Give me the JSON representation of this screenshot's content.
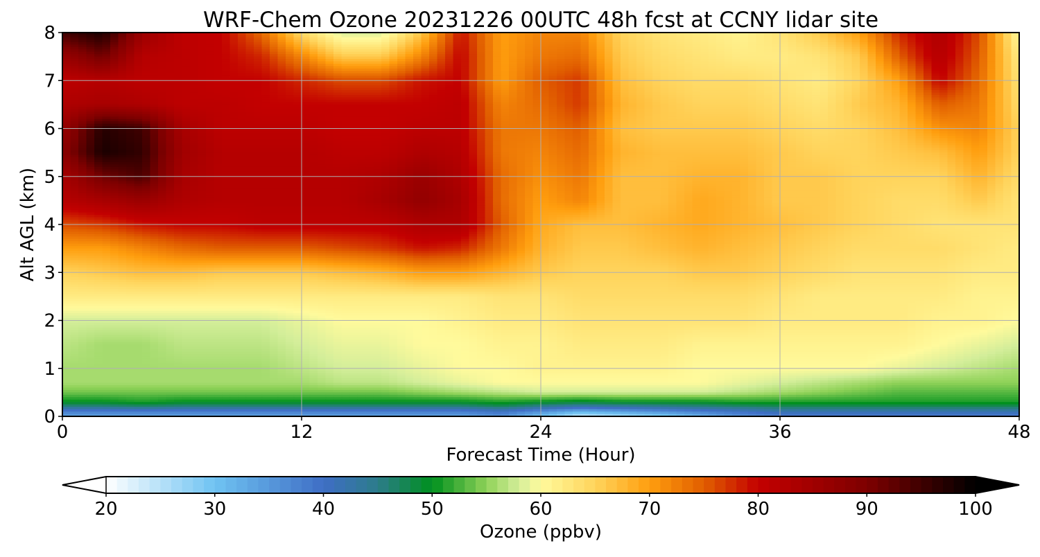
{
  "chart_data": {
    "type": "heatmap",
    "title": "WRF-Chem Ozone  20231226 00UTC 48h fcst at CCNY lidar site",
    "xlabel": "Forecast Time (Hour)",
    "ylabel": "Alt AGL (km)",
    "xlim": [
      0,
      48
    ],
    "ylim": [
      0,
      8
    ],
    "xticks": [
      0,
      12,
      24,
      36,
      48
    ],
    "yticks": [
      0,
      1,
      2,
      3,
      4,
      5,
      6,
      7,
      8
    ],
    "grid": true,
    "colorbar": {
      "label": "Ozone  (ppbv)",
      "orientation": "horizontal",
      "position": "bottom",
      "range": [
        20,
        100
      ],
      "ticks": [
        20,
        30,
        40,
        50,
        60,
        70,
        80,
        90,
        100
      ],
      "extend": "both",
      "color_stops": [
        {
          "value": 20,
          "color": "#ffffff"
        },
        {
          "value": 30,
          "color": "#6fc3f2"
        },
        {
          "value": 40,
          "color": "#3f6ec5"
        },
        {
          "value": 45,
          "color": "#2c7c8a"
        },
        {
          "value": 50,
          "color": "#00901e"
        },
        {
          "value": 55,
          "color": "#8fd258"
        },
        {
          "value": 58,
          "color": "#d4ee9a"
        },
        {
          "value": 60,
          "color": "#fffa9c"
        },
        {
          "value": 65,
          "color": "#ffd45c"
        },
        {
          "value": 70,
          "color": "#ff9e0e"
        },
        {
          "value": 75,
          "color": "#e15e00"
        },
        {
          "value": 80,
          "color": "#c30000"
        },
        {
          "value": 90,
          "color": "#7e0000"
        },
        {
          "value": 100,
          "color": "#000000"
        }
      ]
    },
    "x_hours": [
      0,
      2,
      4,
      6,
      8,
      10,
      12,
      14,
      16,
      18,
      20,
      22,
      24,
      26,
      28,
      30,
      32,
      34,
      36,
      38,
      40,
      42,
      44,
      46,
      48
    ],
    "z_km": [
      0,
      0.1,
      0.2,
      0.3,
      0.5,
      0.7,
      1.0,
      1.5,
      2.0,
      2.5,
      3.0,
      3.5,
      4.0,
      4.5,
      5.0,
      5.5,
      6.0,
      6.5,
      7.0,
      7.5,
      8.0
    ],
    "ozone_ppbv": [
      [
        34,
        34,
        34,
        34,
        34,
        34,
        34,
        34,
        34,
        34,
        34,
        36,
        30,
        24,
        26,
        28,
        32,
        36,
        38,
        38,
        38,
        38,
        38,
        38,
        38
      ],
      [
        38,
        38,
        38,
        38,
        38,
        38,
        38,
        38,
        38,
        38,
        38,
        40,
        36,
        32,
        34,
        36,
        38,
        40,
        42,
        42,
        42,
        42,
        42,
        42,
        42
      ],
      [
        45,
        45,
        46,
        45,
        45,
        45,
        45,
        45,
        45,
        45,
        45,
        47,
        44,
        42,
        43,
        44,
        45,
        46,
        47,
        47,
        47,
        47,
        47,
        47,
        47
      ],
      [
        50,
        50,
        51,
        50,
        50,
        50,
        50,
        50,
        50,
        50,
        50,
        51,
        50,
        49,
        50,
        50,
        50,
        51,
        51,
        51,
        51,
        51,
        51,
        51,
        51
      ],
      [
        54,
        54,
        54,
        54,
        54,
        54,
        54,
        54,
        54,
        55,
        56,
        57,
        58,
        58,
        58,
        58,
        58,
        57,
        56,
        55,
        54,
        53,
        53,
        53,
        53
      ],
      [
        56,
        56,
        56,
        56,
        56,
        56,
        56,
        57,
        57,
        58,
        59,
        60,
        60,
        60,
        60,
        60,
        60,
        59,
        58,
        57,
        56,
        55,
        55,
        55,
        55
      ],
      [
        56,
        56,
        56,
        56,
        56,
        56,
        57,
        58,
        58,
        59,
        60,
        60,
        61,
        61,
        61,
        61,
        60,
        60,
        60,
        60,
        60,
        59,
        58,
        57,
        56
      ],
      [
        57,
        56,
        56,
        57,
        57,
        57,
        58,
        59,
        59,
        60,
        60,
        61,
        61,
        62,
        62,
        62,
        61,
        61,
        61,
        61,
        61,
        61,
        60,
        59,
        58
      ],
      [
        58,
        58,
        58,
        58,
        58,
        58,
        59,
        60,
        60,
        60,
        61,
        62,
        62,
        63,
        63,
        63,
        63,
        63,
        62,
        62,
        62,
        62,
        61,
        61,
        60
      ],
      [
        62,
        62,
        62,
        62,
        62,
        62,
        62,
        62,
        62,
        62,
        62,
        63,
        63,
        64,
        64,
        64,
        64,
        64,
        63,
        62,
        62,
        62,
        62,
        61,
        61
      ],
      [
        65,
        66,
        67,
        67,
        66,
        66,
        66,
        67,
        68,
        70,
        70,
        68,
        66,
        65,
        65,
        65,
        66,
        66,
        65,
        64,
        63,
        63,
        63,
        62,
        62
      ],
      [
        70,
        70,
        72,
        74,
        75,
        75,
        75,
        76,
        77,
        79,
        78,
        73,
        68,
        66,
        66,
        67,
        68,
        67,
        66,
        65,
        64,
        64,
        64,
        63,
        62
      ],
      [
        76,
        77,
        79,
        80,
        80,
        81,
        81,
        81,
        81,
        83,
        83,
        75,
        69,
        67,
        67,
        68,
        69,
        68,
        67,
        66,
        65,
        64,
        63,
        63,
        63
      ],
      [
        82,
        84,
        86,
        83,
        82,
        82,
        82,
        82,
        84,
        87,
        84,
        74,
        70,
        72,
        67,
        67,
        69,
        68,
        66,
        66,
        65,
        64,
        64,
        66,
        63
      ],
      [
        84,
        91,
        94,
        84,
        82,
        82,
        82,
        82,
        83,
        86,
        83,
        74,
        71,
        73,
        67,
        67,
        68,
        68,
        66,
        66,
        65,
        65,
        65,
        68,
        64
      ],
      [
        88,
        98,
        96,
        85,
        82,
        82,
        82,
        81,
        81,
        83,
        82,
        73,
        72,
        74,
        68,
        67,
        67,
        67,
        66,
        65,
        65,
        66,
        67,
        70,
        65
      ],
      [
        86,
        97,
        95,
        84,
        81,
        81,
        81,
        80,
        80,
        81,
        81,
        73,
        73,
        75,
        67,
        66,
        66,
        66,
        65,
        64,
        65,
        67,
        71,
        72,
        65
      ],
      [
        83,
        84,
        83,
        81,
        81,
        80,
        80,
        80,
        80,
        80,
        81,
        72,
        74,
        77,
        68,
        66,
        65,
        65,
        64,
        63,
        66,
        68,
        75,
        73,
        64
      ],
      [
        81,
        82,
        81,
        81,
        80,
        80,
        78,
        76,
        76,
        79,
        80,
        70,
        75,
        77,
        67,
        65,
        64,
        64,
        63,
        62,
        65,
        70,
        80,
        74,
        63
      ],
      [
        86,
        91,
        82,
        81,
        80,
        78,
        72,
        66,
        66,
        72,
        80,
        70,
        73,
        74,
        66,
        64,
        63,
        62,
        62,
        63,
        66,
        75,
        82,
        75,
        62
      ],
      [
        95,
        98,
        86,
        81,
        80,
        74,
        64,
        58,
        58,
        66,
        79,
        70,
        72,
        72,
        65,
        63,
        62,
        61,
        63,
        66,
        70,
        78,
        83,
        76,
        60
      ]
    ]
  }
}
